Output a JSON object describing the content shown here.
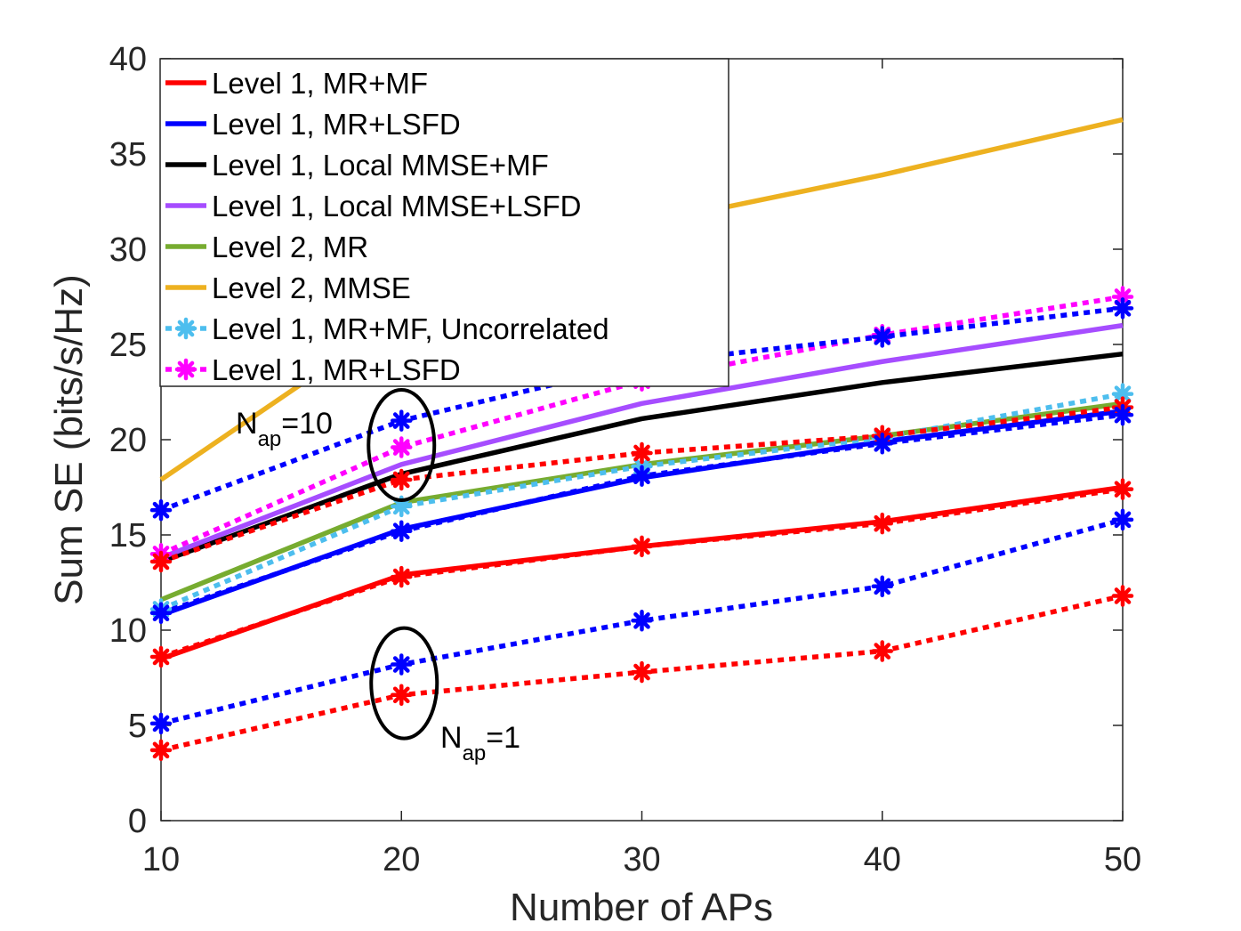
{
  "chart_data": {
    "type": "line",
    "title": "",
    "xlabel": "Number of APs",
    "ylabel": "Sum SE (bits/s/Hz)",
    "xlim": [
      10,
      50
    ],
    "ylim": [
      0,
      40
    ],
    "xticks": [
      10,
      20,
      30,
      40,
      50
    ],
    "yticks": [
      0,
      5,
      10,
      15,
      20,
      25,
      30,
      35,
      40
    ],
    "grid": false,
    "legend_position": "top-left",
    "x": [
      10,
      20,
      30,
      40,
      50
    ],
    "series": [
      {
        "name": "Level 1, MR+MF",
        "color": "#ff0000",
        "style": "solid",
        "marker": "none",
        "in_legend": true,
        "values": [
          8.5,
          12.9,
          14.4,
          15.7,
          17.5
        ]
      },
      {
        "name": "Level 1, MR+LSFD",
        "color": "#0000ff",
        "style": "solid",
        "marker": "none",
        "in_legend": true,
        "values": [
          10.8,
          15.3,
          18.0,
          19.9,
          21.5
        ]
      },
      {
        "name": "Level 1, Local MMSE+MF",
        "color": "#000000",
        "style": "solid",
        "marker": "none",
        "in_legend": true,
        "values": [
          13.6,
          18.2,
          21.1,
          23.0,
          24.5
        ]
      },
      {
        "name": "Level 1, Local MMSE+LSFD",
        "color": "#a64dff",
        "style": "solid",
        "marker": "none",
        "in_legend": true,
        "values": [
          13.8,
          18.7,
          21.9,
          24.1,
          26.0
        ]
      },
      {
        "name": "Level 2, MR",
        "color": "#77ac30",
        "style": "solid",
        "marker": "none",
        "in_legend": true,
        "values": [
          11.6,
          16.7,
          18.7,
          20.2,
          21.9
        ]
      },
      {
        "name": "Level 2, MMSE",
        "color": "#edb120",
        "style": "solid",
        "marker": "none",
        "in_legend": true,
        "values": [
          17.9,
          26.5,
          31.3,
          33.9,
          36.8
        ]
      },
      {
        "name": "Level 1, MR+MF, Uncorrelated",
        "color": "#4dbeee",
        "style": "dotted",
        "marker": "asterisk",
        "in_legend": true,
        "values": [
          11.1,
          16.5,
          18.6,
          20.1,
          22.4
        ]
      },
      {
        "name": "Level 1, MR+LSFD",
        "color": "#ff00ff",
        "style": "dotted",
        "marker": "asterisk",
        "in_legend": true,
        "values": [
          14.0,
          19.6,
          23.1,
          25.5,
          27.5
        ]
      },
      {
        "name": "",
        "color": "#0000ff",
        "style": "dotted",
        "marker": "asterisk",
        "in_legend": false,
        "values": [
          16.3,
          21.0,
          24.0,
          25.4,
          26.9
        ]
      },
      {
        "name": "",
        "color": "#ff0000",
        "style": "dotted",
        "marker": "asterisk",
        "in_legend": false,
        "values": [
          13.6,
          17.9,
          19.3,
          20.2,
          21.7
        ]
      },
      {
        "name": "",
        "color": "#ff0000",
        "style": "dotted",
        "marker": "asterisk",
        "in_legend": false,
        "values": [
          8.6,
          12.8,
          14.4,
          15.6,
          17.4
        ]
      },
      {
        "name": "",
        "color": "#0000ff",
        "style": "dotted",
        "marker": "asterisk",
        "in_legend": false,
        "values": [
          10.9,
          15.2,
          18.1,
          19.8,
          21.3
        ]
      },
      {
        "name": "",
        "color": "#0000ff",
        "style": "dotted",
        "marker": "asterisk",
        "in_legend": false,
        "values": [
          5.1,
          8.2,
          10.5,
          12.3,
          15.8
        ]
      },
      {
        "name": "",
        "color": "#ff0000",
        "style": "dotted",
        "marker": "asterisk",
        "in_legend": false,
        "values": [
          3.7,
          6.6,
          7.8,
          8.9,
          11.8
        ]
      }
    ],
    "annotations": [
      {
        "base": "N",
        "sub": "ap",
        "suffix": "=10",
        "near_x": 20,
        "near_y": 20
      },
      {
        "base": "N",
        "sub": "ap",
        "suffix": "=1",
        "near_x": 20,
        "near_y": 7.4
      }
    ]
  }
}
